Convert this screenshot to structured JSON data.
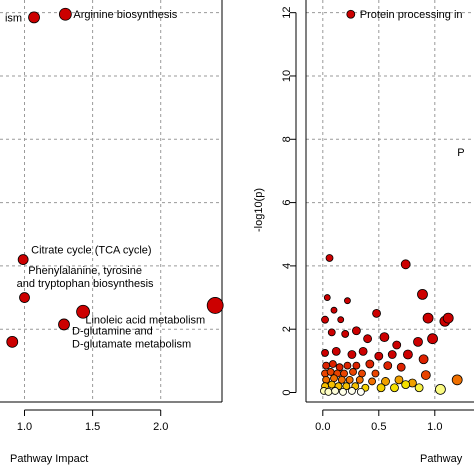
{
  "chart_data": [
    {
      "type": "scatter",
      "xlabel": "Pathway Impact",
      "ylabel": "",
      "xlim": [
        0.82,
        2.45
      ],
      "ylim": [
        -0.3,
        12.4
      ],
      "x_ticks": [
        "1.0",
        "1.5",
        "2.0"
      ],
      "grid": true,
      "points": [
        {
          "x": 1.07,
          "y": 11.85,
          "r": 5.5,
          "color": "#cc0000",
          "label": "ism"
        },
        {
          "x": 1.3,
          "y": 11.95,
          "r": 6,
          "color": "#cc0000",
          "label": "Arginine biosynthesis"
        },
        {
          "x": 0.99,
          "y": 4.2,
          "r": 5,
          "color": "#cc0000",
          "label": "Citrate cycle (TCA cycle)"
        },
        {
          "x": 1.0,
          "y": 3.0,
          "r": 5,
          "color": "#cc0000",
          "label": ""
        },
        {
          "x": 1.43,
          "y": 2.55,
          "r": 6.5,
          "color": "#cc0000",
          "label": "Phenylalanine, tyrosine\nand tryptophan biosynthesis"
        },
        {
          "x": 2.4,
          "y": 2.75,
          "r": 8,
          "color": "#cc0000",
          "label": "Linoleic acid metabolism"
        },
        {
          "x": 1.29,
          "y": 2.15,
          "r": 5.5,
          "color": "#cc0000",
          "label": "D-glutamine and\nD-glutamate metabolism"
        },
        {
          "x": 0.91,
          "y": 1.6,
          "r": 5.5,
          "color": "#cc0000",
          "label": ""
        }
      ]
    },
    {
      "type": "scatter",
      "xlabel": "Pathway",
      "ylabel": "-log10(p)",
      "xlim": [
        -0.15,
        1.35
      ],
      "ylim": [
        -0.3,
        12.4
      ],
      "x_ticks": [
        "0.0",
        "0.5",
        "1.0"
      ],
      "y_ticks": [
        "0",
        "2",
        "4",
        "6",
        "8",
        "10",
        "12"
      ],
      "grid": true,
      "annotations": [
        {
          "text": "Protein processing in",
          "x": 0.25,
          "y": 11.95
        },
        {
          "text": "P",
          "x": 1.2,
          "y": 7.6
        }
      ],
      "points": [
        {
          "x": 0.25,
          "y": 11.95,
          "r": 4,
          "color": "#cc0000"
        },
        {
          "x": 0.06,
          "y": 4.25,
          "r": 3.5,
          "color": "#cc0000"
        },
        {
          "x": 0.74,
          "y": 4.05,
          "r": 4.5,
          "color": "#cc0000"
        },
        {
          "x": 0.04,
          "y": 3.0,
          "r": 3,
          "color": "#cc0000"
        },
        {
          "x": 0.22,
          "y": 2.9,
          "r": 3,
          "color": "#cc0000"
        },
        {
          "x": 0.89,
          "y": 3.1,
          "r": 5,
          "color": "#cc0000"
        },
        {
          "x": 0.1,
          "y": 2.6,
          "r": 3,
          "color": "#cc0000"
        },
        {
          "x": 0.02,
          "y": 2.3,
          "r": 3.5,
          "color": "#cc0000"
        },
        {
          "x": 0.16,
          "y": 2.3,
          "r": 3,
          "color": "#cc0000"
        },
        {
          "x": 0.48,
          "y": 2.5,
          "r": 4,
          "color": "#cc0000"
        },
        {
          "x": 0.94,
          "y": 2.35,
          "r": 5,
          "color": "#cc0000"
        },
        {
          "x": 1.09,
          "y": 2.25,
          "r": 5,
          "color": "#cc0000"
        },
        {
          "x": 1.12,
          "y": 2.35,
          "r": 5,
          "color": "#cc0000"
        },
        {
          "x": 0.08,
          "y": 1.9,
          "r": 3.5,
          "color": "#cc0000"
        },
        {
          "x": 0.2,
          "y": 1.85,
          "r": 3.5,
          "color": "#cc0000"
        },
        {
          "x": 0.3,
          "y": 1.95,
          "r": 4,
          "color": "#cc0000"
        },
        {
          "x": 0.4,
          "y": 1.7,
          "r": 4,
          "color": "#cc0000"
        },
        {
          "x": 0.55,
          "y": 1.75,
          "r": 4.5,
          "color": "#cc0000"
        },
        {
          "x": 0.66,
          "y": 1.5,
          "r": 4,
          "color": "#cc0000"
        },
        {
          "x": 0.85,
          "y": 1.6,
          "r": 4.5,
          "color": "#cc0000"
        },
        {
          "x": 0.98,
          "y": 1.7,
          "r": 5,
          "color": "#cc0000"
        },
        {
          "x": 0.02,
          "y": 1.25,
          "r": 3.5,
          "color": "#cc0000"
        },
        {
          "x": 0.12,
          "y": 1.3,
          "r": 4,
          "color": "#cc0000"
        },
        {
          "x": 0.26,
          "y": 1.2,
          "r": 4,
          "color": "#cc0000"
        },
        {
          "x": 0.36,
          "y": 1.3,
          "r": 4,
          "color": "#cc0000"
        },
        {
          "x": 0.5,
          "y": 1.15,
          "r": 4,
          "color": "#cc0000"
        },
        {
          "x": 0.62,
          "y": 1.2,
          "r": 4,
          "color": "#cc0000"
        },
        {
          "x": 0.76,
          "y": 1.2,
          "r": 4.5,
          "color": "#cc0000"
        },
        {
          "x": 0.9,
          "y": 1.05,
          "r": 4.5,
          "color": "#dd2200"
        },
        {
          "x": 0.03,
          "y": 0.85,
          "r": 3.5,
          "color": "#dd2200"
        },
        {
          "x": 0.09,
          "y": 0.9,
          "r": 3.5,
          "color": "#dd2200"
        },
        {
          "x": 0.15,
          "y": 0.8,
          "r": 3.5,
          "color": "#dd2200"
        },
        {
          "x": 0.22,
          "y": 0.85,
          "r": 3.5,
          "color": "#dd2200"
        },
        {
          "x": 0.3,
          "y": 0.85,
          "r": 3.5,
          "color": "#dd2200"
        },
        {
          "x": 0.42,
          "y": 0.9,
          "r": 4,
          "color": "#dd2200"
        },
        {
          "x": 0.58,
          "y": 0.85,
          "r": 4,
          "color": "#dd2200"
        },
        {
          "x": 0.7,
          "y": 0.8,
          "r": 4,
          "color": "#dd2200"
        },
        {
          "x": 0.02,
          "y": 0.6,
          "r": 3.5,
          "color": "#e84400"
        },
        {
          "x": 0.07,
          "y": 0.65,
          "r": 3.5,
          "color": "#e84400"
        },
        {
          "x": 0.13,
          "y": 0.6,
          "r": 3.5,
          "color": "#e84400"
        },
        {
          "x": 0.19,
          "y": 0.6,
          "r": 3.5,
          "color": "#e84400"
        },
        {
          "x": 0.27,
          "y": 0.65,
          "r": 3.5,
          "color": "#e84400"
        },
        {
          "x": 0.35,
          "y": 0.6,
          "r": 3.5,
          "color": "#e84400"
        },
        {
          "x": 0.47,
          "y": 0.6,
          "r": 3.5,
          "color": "#e84400"
        },
        {
          "x": 0.92,
          "y": 0.55,
          "r": 4.5,
          "color": "#e84400"
        },
        {
          "x": 1.2,
          "y": 0.4,
          "r": 5,
          "color": "#f07000"
        },
        {
          "x": 0.03,
          "y": 0.4,
          "r": 3.5,
          "color": "#f07000"
        },
        {
          "x": 0.1,
          "y": 0.45,
          "r": 3.5,
          "color": "#f07000"
        },
        {
          "x": 0.17,
          "y": 0.4,
          "r": 3.5,
          "color": "#f07000"
        },
        {
          "x": 0.24,
          "y": 0.4,
          "r": 3.5,
          "color": "#f07000"
        },
        {
          "x": 0.33,
          "y": 0.4,
          "r": 3.5,
          "color": "#f07000"
        },
        {
          "x": 0.44,
          "y": 0.35,
          "r": 3.5,
          "color": "#f07000"
        },
        {
          "x": 0.56,
          "y": 0.35,
          "r": 4,
          "color": "#f0a000"
        },
        {
          "x": 0.68,
          "y": 0.4,
          "r": 4,
          "color": "#f0a000"
        },
        {
          "x": 0.8,
          "y": 0.3,
          "r": 4,
          "color": "#f0a000"
        },
        {
          "x": 0.02,
          "y": 0.2,
          "r": 3.5,
          "color": "#f5c000"
        },
        {
          "x": 0.08,
          "y": 0.25,
          "r": 3.5,
          "color": "#f5c000"
        },
        {
          "x": 0.14,
          "y": 0.2,
          "r": 3.5,
          "color": "#f5c000"
        },
        {
          "x": 0.21,
          "y": 0.2,
          "r": 3.5,
          "color": "#f5c000"
        },
        {
          "x": 0.29,
          "y": 0.2,
          "r": 3.5,
          "color": "#f5c000"
        },
        {
          "x": 0.38,
          "y": 0.15,
          "r": 3.5,
          "color": "#f5d000"
        },
        {
          "x": 0.52,
          "y": 0.15,
          "r": 4,
          "color": "#f5d000"
        },
        {
          "x": 0.64,
          "y": 0.15,
          "r": 4,
          "color": "#f5e000"
        },
        {
          "x": 0.74,
          "y": 0.25,
          "r": 4,
          "color": "#f5e000"
        },
        {
          "x": 0.86,
          "y": 0.15,
          "r": 4,
          "color": "#f8f040"
        },
        {
          "x": 1.05,
          "y": 0.1,
          "r": 5,
          "color": "#fafa80"
        },
        {
          "x": 0.01,
          "y": 0.05,
          "r": 3.5,
          "color": "#fcfcb0"
        },
        {
          "x": 0.05,
          "y": 0.02,
          "r": 3.5,
          "color": "#fdfdc8"
        },
        {
          "x": 0.11,
          "y": 0.05,
          "r": 3.5,
          "color": "#fdfdd8"
        },
        {
          "x": 0.18,
          "y": 0.02,
          "r": 3.5,
          "color": "#ffffe8"
        },
        {
          "x": 0.26,
          "y": 0.05,
          "r": 3.5,
          "color": "#ffffee"
        },
        {
          "x": 0.34,
          "y": 0.02,
          "r": 3.5,
          "color": "#fffff5"
        }
      ]
    }
  ]
}
